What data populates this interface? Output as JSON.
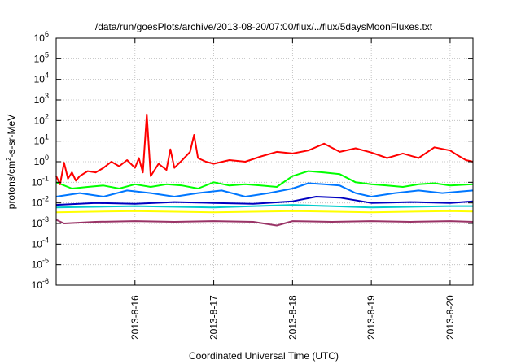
{
  "chart_data": {
    "type": "line",
    "title": "/data/run/goesPlots/archive/2013-08-20/07:00/flux/../flux/5daysMoonFluxes.txt",
    "xlabel": "Coordinated Universal Time (UTC)",
    "ylabel": {
      "pre": "protons/cm",
      "sup": "2",
      "post": "-s-sr-MeV"
    },
    "x_ticks": [
      "2013-8-16",
      "2013-8-17",
      "2013-8-18",
      "2013-8-19",
      "2013-8-20"
    ],
    "xlim": [
      "2013-08-15",
      "2013-08-20 07:00"
    ],
    "yscale": "log",
    "ylim": [
      1e-06,
      1000000.0
    ],
    "y_ticks": [
      {
        "base": "10",
        "exp": "-6"
      },
      {
        "base": "10",
        "exp": "-5"
      },
      {
        "base": "10",
        "exp": "-4"
      },
      {
        "base": "10",
        "exp": "-3"
      },
      {
        "base": "10",
        "exp": "-2"
      },
      {
        "base": "10",
        "exp": "-1"
      },
      {
        "base": "10",
        "exp": "0"
      },
      {
        "base": "10",
        "exp": "1"
      },
      {
        "base": "10",
        "exp": "2"
      },
      {
        "base": "10",
        "exp": "3"
      },
      {
        "base": "10",
        "exp": "4"
      },
      {
        "base": "10",
        "exp": "5"
      },
      {
        "base": "10",
        "exp": "6"
      }
    ],
    "grid": true,
    "series": [
      {
        "color": "#ff0000",
        "x": [
          0,
          0.05,
          0.1,
          0.15,
          0.2,
          0.25,
          0.3,
          0.4,
          0.5,
          0.6,
          0.7,
          0.8,
          0.9,
          1.0,
          1.05,
          1.1,
          1.15,
          1.2,
          1.3,
          1.4,
          1.45,
          1.5,
          1.6,
          1.7,
          1.75,
          1.8,
          1.9,
          2.0,
          2.2,
          2.4,
          2.6,
          2.8,
          3.0,
          3.2,
          3.4,
          3.6,
          3.8,
          4.0,
          4.2,
          4.4,
          4.6,
          4.8,
          5.0,
          5.1,
          5.2,
          5.29
        ],
        "y": [
          0.2,
          0.08,
          0.9,
          0.15,
          0.3,
          0.12,
          0.2,
          0.35,
          0.3,
          0.5,
          1.0,
          0.6,
          1.2,
          0.5,
          1.5,
          0.3,
          200,
          0.2,
          0.8,
          0.4,
          4,
          0.5,
          1.2,
          3,
          20,
          1.5,
          1.0,
          0.8,
          1.2,
          1.0,
          1.8,
          3,
          2.5,
          3.5,
          7.5,
          3,
          4.5,
          2.8,
          1.5,
          2.5,
          1.5,
          5,
          3.5,
          2,
          1.2,
          1.0
        ]
      },
      {
        "color": "#00ff00",
        "x": [
          0,
          0.2,
          0.4,
          0.6,
          0.8,
          1.0,
          1.2,
          1.4,
          1.6,
          1.8,
          2.0,
          2.2,
          2.4,
          2.6,
          2.8,
          3.0,
          3.2,
          3.4,
          3.6,
          3.8,
          4.0,
          4.2,
          4.4,
          4.6,
          4.8,
          5.0,
          5.29
        ],
        "y": [
          0.1,
          0.05,
          0.06,
          0.07,
          0.05,
          0.08,
          0.06,
          0.08,
          0.07,
          0.05,
          0.1,
          0.07,
          0.08,
          0.07,
          0.06,
          0.2,
          0.35,
          0.3,
          0.25,
          0.1,
          0.08,
          0.07,
          0.06,
          0.08,
          0.09,
          0.07,
          0.08
        ]
      },
      {
        "color": "#0077ff",
        "x": [
          0,
          0.3,
          0.6,
          0.9,
          1.2,
          1.5,
          1.8,
          2.1,
          2.4,
          2.7,
          3.0,
          3.2,
          3.4,
          3.6,
          3.8,
          4.0,
          4.3,
          4.6,
          4.9,
          5.29
        ],
        "y": [
          0.02,
          0.03,
          0.02,
          0.04,
          0.03,
          0.02,
          0.03,
          0.04,
          0.02,
          0.03,
          0.05,
          0.09,
          0.08,
          0.07,
          0.03,
          0.02,
          0.03,
          0.04,
          0.03,
          0.04
        ]
      },
      {
        "color": "#0000c0",
        "x": [
          0,
          0.5,
          1.0,
          1.5,
          2.0,
          2.5,
          3.0,
          3.3,
          3.6,
          4.0,
          4.5,
          5.0,
          5.29
        ],
        "y": [
          0.008,
          0.01,
          0.009,
          0.011,
          0.01,
          0.009,
          0.012,
          0.02,
          0.018,
          0.01,
          0.011,
          0.01,
          0.012
        ]
      },
      {
        "color": "#00cccc",
        "x": [
          0,
          1.0,
          2.0,
          3.0,
          4.0,
          5.0,
          5.29
        ],
        "y": [
          0.006,
          0.007,
          0.006,
          0.008,
          0.006,
          0.007,
          0.007
        ]
      },
      {
        "color": "#ffff00",
        "x": [
          0,
          1.0,
          2.0,
          3.0,
          4.0,
          5.0,
          5.29
        ],
        "y": [
          0.0035,
          0.004,
          0.0035,
          0.004,
          0.0035,
          0.004,
          0.0038
        ]
      },
      {
        "color": "#993366",
        "x": [
          0,
          0.1,
          0.5,
          1.0,
          1.5,
          2.0,
          2.5,
          2.8,
          3.0,
          3.5,
          4.0,
          4.5,
          5.0,
          5.29
        ],
        "y": [
          0.0015,
          0.001,
          0.0012,
          0.0013,
          0.0012,
          0.0013,
          0.0012,
          0.0008,
          0.0013,
          0.0012,
          0.0013,
          0.0012,
          0.0013,
          0.0012
        ]
      }
    ]
  }
}
